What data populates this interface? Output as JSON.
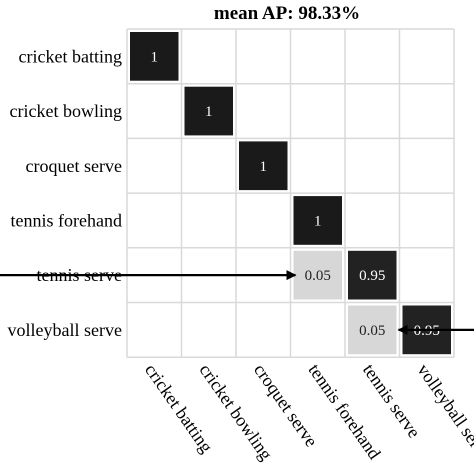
{
  "chart_data": {
    "type": "heatmap",
    "title": "mean AP: 98.33%",
    "row_labels": [
      "cricket batting",
      "cricket bowling",
      "croquet serve",
      "tennis forehand",
      "tennis serve",
      "volleyball serve"
    ],
    "col_labels": [
      "cricket batting",
      "cricket bowling",
      "croquet serve",
      "tennis forehand",
      "tennis serve",
      "volleyball serve"
    ],
    "values": [
      [
        1,
        0,
        0,
        0,
        0,
        0
      ],
      [
        0,
        1,
        0,
        0,
        0,
        0
      ],
      [
        0,
        0,
        1,
        0,
        0,
        0
      ],
      [
        0,
        0,
        0,
        1,
        0,
        0
      ],
      [
        0,
        0,
        0,
        0.05,
        0.95,
        0
      ],
      [
        0,
        0,
        0,
        0,
        0.05,
        0.95
      ]
    ],
    "cell_labels": [
      [
        "1",
        "",
        "",
        "",
        "",
        ""
      ],
      [
        "",
        "1",
        "",
        "",
        "",
        ""
      ],
      [
        "",
        "",
        "1",
        "",
        "",
        ""
      ],
      [
        "",
        "",
        "",
        "1",
        "",
        ""
      ],
      [
        "",
        "",
        "",
        "0.05",
        "0.95",
        ""
      ],
      [
        "",
        "",
        "",
        "",
        "0.05",
        "0.95"
      ]
    ],
    "annotations": [
      {
        "type": "arrow",
        "direction": "right",
        "target_row": 4,
        "target_col": 3
      },
      {
        "type": "arrow",
        "direction": "left",
        "target_row": 5,
        "target_col": 4
      }
    ],
    "colors": {
      "high": "#1a1a1a",
      "low": "#ffffff",
      "grid": "#d9d9d9",
      "text_on_dark": "#ffffff",
      "text_on_light": "#222222",
      "arrow": "#000000"
    }
  }
}
